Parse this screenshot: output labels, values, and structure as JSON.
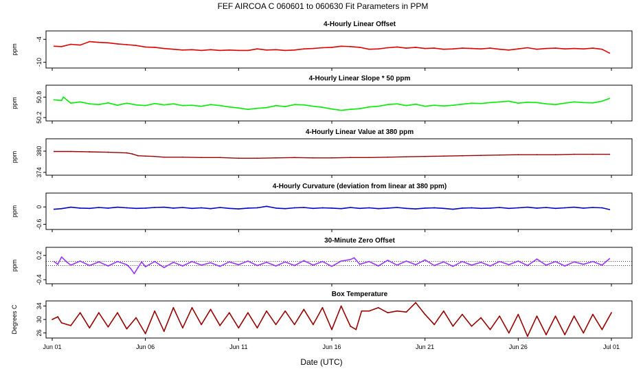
{
  "title": "FEF   AIRCOA C   060601 to 060630   Fit Parameters in PPM",
  "xlabel": "Date (UTC)",
  "x_range_days": [
    0,
    30
  ],
  "x_ticks": [
    {
      "day": 0,
      "label": "Jun 01"
    },
    {
      "day": 5,
      "label": "Jun 06"
    },
    {
      "day": 10,
      "label": "Jun 11"
    },
    {
      "day": 15,
      "label": "Jun 16"
    },
    {
      "day": 20,
      "label": "Jun 21"
    },
    {
      "day": 25,
      "label": "Jun 26"
    },
    {
      "day": 30,
      "label": "Jul 01"
    }
  ],
  "chart_data": [
    {
      "type": "line",
      "title": "4-Hourly Linear Offset",
      "ylabel": "ppm",
      "ylim": [
        -11.5,
        -1.8
      ],
      "yticks": [
        -4,
        -10
      ],
      "color": "#dd0000",
      "x": [
        0.1,
        0.5,
        1,
        1.5,
        2,
        2.5,
        3,
        3.5,
        4,
        4.5,
        5,
        5.5,
        6,
        6.5,
        7,
        7.5,
        8,
        8.5,
        9,
        9.5,
        10,
        10.5,
        11,
        11.5,
        12,
        12.5,
        13,
        13.5,
        14,
        14.5,
        15,
        15.5,
        16,
        16.5,
        17,
        17.5,
        18,
        18.5,
        19,
        19.5,
        20,
        20.5,
        21,
        21.5,
        22,
        22.5,
        23,
        23.5,
        24,
        24.5,
        25,
        25.5,
        26,
        26.5,
        27,
        27.5,
        28,
        28.5,
        29,
        29.5,
        29.9
      ],
      "y": [
        -5.8,
        -5.9,
        -5.3,
        -5.5,
        -4.6,
        -4.8,
        -4.9,
        -5.2,
        -5.4,
        -5.6,
        -6.0,
        -6.1,
        -6.4,
        -6.6,
        -6.8,
        -6.7,
        -6.9,
        -6.7,
        -6.9,
        -6.8,
        -6.9,
        -6.9,
        -6.5,
        -6.8,
        -6.7,
        -6.9,
        -6.8,
        -6.5,
        -6.4,
        -6.2,
        -6.1,
        -5.8,
        -5.9,
        -6.1,
        -6.6,
        -6.5,
        -6.2,
        -6.0,
        -6.3,
        -6.1,
        -6.4,
        -6.3,
        -6.6,
        -6.5,
        -6.3,
        -6.4,
        -6.5,
        -6.3,
        -6.6,
        -6.8,
        -6.5,
        -6.2,
        -6.6,
        -6.4,
        -6.3,
        -6.5,
        -6.4,
        -6.5,
        -6.3,
        -6.6,
        -7.6
      ]
    },
    {
      "type": "line",
      "title": "4-Hourly Linear Slope * 50 ppm",
      "ylabel": "ppm",
      "ylim": [
        50.1,
        51.15
      ],
      "yticks": [
        50.8,
        50.2
      ],
      "color": "#00ee00",
      "x": [
        0.1,
        0.5,
        0.6,
        1,
        1.5,
        2,
        2.5,
        3,
        3.5,
        4,
        4.5,
        5,
        5.5,
        6,
        6.5,
        7,
        7.5,
        8,
        8.5,
        9,
        9.5,
        10,
        10.5,
        11,
        11.5,
        12,
        12.5,
        13,
        13.5,
        14,
        14.5,
        15,
        15.5,
        16,
        16.5,
        17,
        17.5,
        18,
        18.5,
        19,
        19.5,
        20,
        20.5,
        21,
        21.5,
        22,
        22.5,
        23,
        23.5,
        24,
        24.5,
        25,
        25.5,
        26,
        26.5,
        27,
        27.5,
        28,
        28.5,
        29,
        29.5,
        29.9
      ],
      "y": [
        50.72,
        50.7,
        50.8,
        50.62,
        50.66,
        50.6,
        50.58,
        50.63,
        50.56,
        50.62,
        50.57,
        50.55,
        50.61,
        50.57,
        50.6,
        50.55,
        50.56,
        50.53,
        50.58,
        50.55,
        50.51,
        50.48,
        50.44,
        50.47,
        50.49,
        50.55,
        50.52,
        50.58,
        50.57,
        50.53,
        50.5,
        50.45,
        50.41,
        50.44,
        50.46,
        50.51,
        50.53,
        50.58,
        50.6,
        50.55,
        50.59,
        50.53,
        50.56,
        50.54,
        50.56,
        50.59,
        50.62,
        50.61,
        50.64,
        50.66,
        50.68,
        50.62,
        50.65,
        50.64,
        50.6,
        50.58,
        50.62,
        50.66,
        50.64,
        50.63,
        50.68,
        50.76
      ]
    },
    {
      "type": "line",
      "title": "4-Hourly Linear Value at 380 ppm",
      "ylabel": "ppm",
      "ylim": [
        373.2,
        383.5
      ],
      "yticks": [
        380,
        374
      ],
      "color": "#990000",
      "x": [
        0.1,
        1,
        2,
        3,
        4,
        4.3,
        4.6,
        5,
        5.5,
        6,
        7,
        8,
        9,
        10,
        11,
        12,
        13,
        14,
        15,
        16,
        17,
        18,
        19,
        20,
        21,
        22,
        23,
        24,
        25,
        26,
        27,
        28,
        29,
        29.9
      ],
      "y": [
        379.9,
        379.9,
        379.8,
        379.7,
        379.5,
        379.2,
        378.7,
        378.6,
        378.5,
        378.3,
        378.3,
        378.2,
        378.2,
        378.0,
        378.0,
        378.1,
        378.2,
        378.1,
        378.1,
        378.2,
        378.2,
        378.3,
        378.4,
        378.5,
        378.6,
        378.7,
        378.8,
        378.9,
        379.0,
        379.0,
        379.0,
        379.1,
        379.1,
        379.1
      ]
    },
    {
      "type": "line",
      "title": "4-Hourly Curvature (deviation from linear at 380 ppm)",
      "ylabel": "ppm",
      "ylim": [
        -0.78,
        0.48
      ],
      "yticks": [
        0.0,
        -0.6
      ],
      "color": "#0000cc",
      "x": [
        0.1,
        0.5,
        1,
        1.5,
        2,
        2.5,
        3,
        3.5,
        4,
        4.5,
        5,
        5.5,
        6,
        6.5,
        7,
        7.5,
        8,
        8.5,
        9,
        9.5,
        10,
        10.5,
        11,
        11.5,
        12,
        12.5,
        13,
        13.5,
        14,
        14.5,
        15,
        15.5,
        16,
        16.5,
        17,
        17.5,
        18,
        18.5,
        19,
        19.5,
        20,
        20.5,
        21,
        21.5,
        22,
        22.5,
        23,
        23.5,
        24,
        24.5,
        25,
        25.5,
        26,
        26.5,
        27,
        27.5,
        28,
        28.5,
        29,
        29.5,
        29.9
      ],
      "y": [
        -0.08,
        -0.06,
        -0.01,
        -0.04,
        -0.05,
        -0.02,
        -0.04,
        -0.01,
        -0.03,
        -0.05,
        -0.04,
        -0.02,
        -0.01,
        -0.04,
        -0.02,
        -0.05,
        -0.03,
        -0.06,
        -0.02,
        -0.05,
        -0.07,
        -0.04,
        -0.03,
        0.02,
        -0.04,
        -0.06,
        -0.03,
        -0.02,
        -0.05,
        -0.03,
        -0.04,
        -0.06,
        -0.02,
        -0.05,
        -0.03,
        -0.06,
        -0.04,
        -0.02,
        -0.05,
        -0.07,
        -0.04,
        -0.03,
        -0.05,
        -0.08,
        -0.04,
        -0.03,
        -0.05,
        -0.04,
        -0.02,
        -0.05,
        -0.03,
        -0.01,
        -0.04,
        -0.02,
        -0.05,
        -0.03,
        -0.01,
        -0.04,
        -0.02,
        -0.03,
        -0.09
      ]
    },
    {
      "type": "line",
      "title": "30-Minute Zero Offset",
      "ylabel": "ppm",
      "ylim": [
        -0.5,
        0.4
      ],
      "yticks": [
        0.2,
        -0.4
      ],
      "color": "#9933ff",
      "reference_lines": [
        -0.05,
        0.05
      ],
      "x": [
        0.1,
        0.3,
        0.5,
        0.8,
        1,
        1.5,
        2,
        2.5,
        3,
        3.5,
        4,
        4.2,
        4.4,
        4.6,
        4.8,
        5,
        5.5,
        6,
        6.5,
        7,
        7.5,
        8,
        8.5,
        9,
        9.5,
        10,
        10.5,
        11,
        11.5,
        12,
        12.5,
        13,
        13.5,
        14,
        14.5,
        15,
        15.5,
        16,
        16.2,
        16.5,
        17,
        17.5,
        18,
        18.5,
        19,
        19.5,
        20,
        20.5,
        21,
        21.5,
        22,
        22.5,
        23,
        23.5,
        24,
        24.5,
        25,
        25.5,
        26,
        26.5,
        27,
        27.5,
        28,
        28.5,
        29,
        29.5,
        29.9
      ],
      "y": [
        0.05,
        -0.02,
        0.16,
        0.03,
        -0.04,
        0.06,
        -0.05,
        0.04,
        -0.06,
        0.05,
        -0.03,
        -0.12,
        -0.25,
        -0.1,
        0.04,
        -0.08,
        0.05,
        -0.1,
        0.03,
        -0.06,
        0.05,
        -0.04,
        0.02,
        -0.07,
        0.04,
        -0.03,
        0.06,
        -0.05,
        0.03,
        -0.06,
        0.04,
        -0.05,
        0.07,
        -0.04,
        0.05,
        -0.07,
        0.06,
        0.1,
        0.14,
        -0.02,
        0.05,
        -0.06,
        0.08,
        -0.04,
        0.06,
        -0.03,
        0.09,
        -0.05,
        0.04,
        -0.07,
        0.05,
        -0.04,
        0.03,
        -0.06,
        0.05,
        -0.03,
        0.06,
        -0.05,
        0.11,
        -0.04,
        0.05,
        -0.06,
        0.04,
        -0.02,
        0.05,
        -0.04,
        0.12
      ]
    },
    {
      "type": "line",
      "title": "Box Temperature",
      "ylabel": "Degrees C",
      "ylim": [
        24.5,
        35.5
      ],
      "yticks": [
        34,
        30,
        26
      ],
      "color": "#990000",
      "x": [
        0,
        0.3,
        0.5,
        0.8,
        1,
        1.5,
        2,
        2.5,
        3,
        3.5,
        4,
        4.5,
        5,
        5.5,
        6,
        6.5,
        7,
        7.5,
        8,
        8.5,
        9,
        9.5,
        10,
        10.5,
        11,
        11.5,
        12,
        12.5,
        13,
        13.5,
        14,
        14.5,
        15,
        15.5,
        16,
        16.3,
        16.6,
        17,
        17.5,
        18,
        18.5,
        19,
        19.5,
        20,
        20.5,
        21,
        21.5,
        22,
        22.5,
        23,
        23.5,
        24,
        24.5,
        25,
        25.5,
        26,
        26.5,
        27,
        27.5,
        28,
        28.5,
        29,
        29.5,
        30
      ],
      "y": [
        30,
        30.8,
        29,
        28.5,
        28.2,
        32,
        27.5,
        32,
        27.8,
        32,
        27.2,
        30.5,
        25.8,
        32.5,
        26.5,
        33.5,
        27.5,
        33.5,
        28.5,
        33,
        28.2,
        32,
        27.5,
        32,
        27.5,
        32.5,
        28.5,
        32.5,
        28.5,
        33,
        28.5,
        33.5,
        27,
        34,
        28,
        27,
        32.5,
        32.5,
        33.5,
        32,
        32.5,
        32.2,
        35,
        31.5,
        28.5,
        32.5,
        28,
        31.5,
        28,
        30.5,
        27,
        31,
        26,
        31.5,
        25,
        31,
        25.5,
        31,
        25.5,
        31,
        26,
        31.5,
        27,
        32
      ]
    }
  ]
}
